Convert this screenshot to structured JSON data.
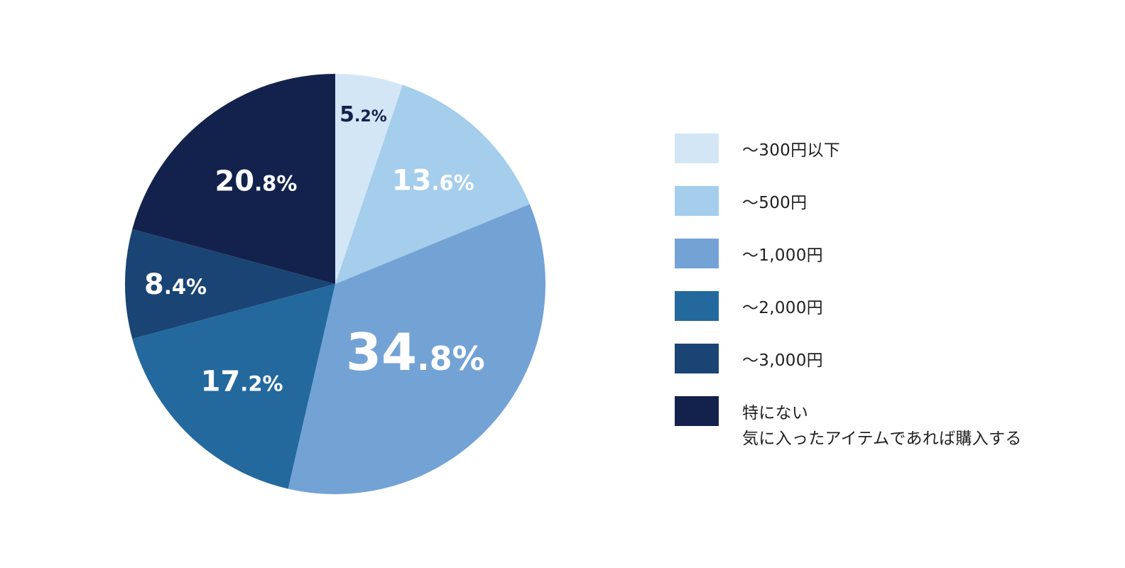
{
  "chart_data": {
    "type": "pie",
    "start_angle_deg": 0,
    "direction": "clockwise",
    "slices": [
      {
        "label": "〜300円以下",
        "value": 5.2,
        "text_int": "5",
        "text_dec": ".2%",
        "color": "#d3e6f6",
        "text_color": "#13224c"
      },
      {
        "label": "〜500円",
        "value": 13.6,
        "text_int": "13",
        "text_dec": ".6%",
        "color": "#a5cdec",
        "text_color": "#ffffff"
      },
      {
        "label": "〜1,000円",
        "value": 34.8,
        "text_int": "34",
        "text_dec": ".8%",
        "color": "#73a2d5",
        "text_color": "#ffffff"
      },
      {
        "label": "〜2,000円",
        "value": 17.2,
        "text_int": "17",
        "text_dec": ".2%",
        "color": "#23699e",
        "text_color": "#ffffff"
      },
      {
        "label": "〜3,000円",
        "value": 8.4,
        "text_int": "8",
        "text_dec": ".4%",
        "color": "#1a4474",
        "text_color": "#ffffff"
      },
      {
        "label": "特にない\n気に入ったアイテムであれば購入する",
        "value": 20.8,
        "text_int": "20",
        "text_dec": ".8%",
        "color": "#13224c",
        "text_color": "#ffffff"
      }
    ],
    "legend_position": "right"
  }
}
